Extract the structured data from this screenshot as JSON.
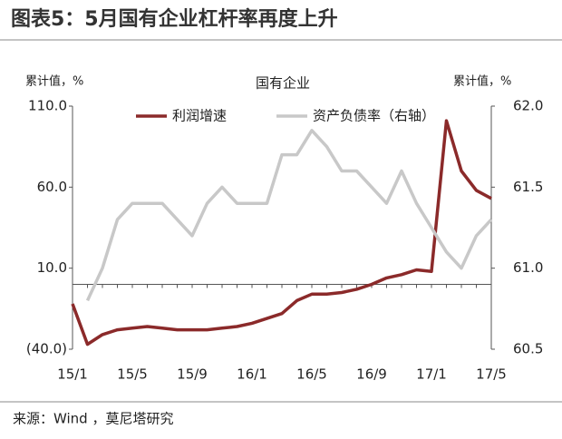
{
  "chart_data": {
    "type": "line",
    "title": "图表5：5月国有企业杠杆率再度上升",
    "subtitle": "国有企业",
    "y_label": "累计值，%",
    "y2_label": "累计值，%",
    "source": "来源：Wind ，莫尼塔研究",
    "categories": [
      "15/1",
      null,
      null,
      null,
      "15/5",
      null,
      null,
      null,
      "15/9",
      null,
      null,
      null,
      "16/1",
      null,
      null,
      null,
      "16/5",
      null,
      null,
      null,
      "16/9",
      null,
      null,
      null,
      "17/1",
      null,
      null,
      null,
      "17/5"
    ],
    "series": [
      {
        "name": "利润增速",
        "color": "#8b2a2a",
        "values": [
          -12,
          -37,
          -31,
          -28,
          -27,
          -26,
          -27,
          -28,
          -28,
          -28,
          -27,
          -26,
          -24,
          -21,
          -18,
          -10,
          -6,
          -6,
          -5,
          -3,
          0,
          4,
          6,
          9,
          8,
          101,
          70,
          58,
          53
        ]
      },
      {
        "name": "资产负债率（右轴）",
        "color": "#c8c8c8",
        "axis": "y2",
        "values": [
          null,
          60.8,
          61.0,
          61.3,
          61.4,
          61.4,
          61.4,
          61.3,
          61.2,
          61.4,
          61.5,
          61.4,
          61.4,
          61.4,
          61.7,
          61.7,
          61.85,
          61.75,
          61.6,
          61.6,
          61.5,
          61.4,
          61.6,
          61.4,
          61.25,
          61.1,
          61.0,
          61.2,
          61.3
        ]
      }
    ],
    "ylim": [
      -40,
      110
    ],
    "yticks": [
      {
        "value": 110,
        "label": "110.0"
      },
      {
        "value": 60,
        "label": "60.0"
      },
      {
        "value": 10,
        "label": "10.0"
      },
      {
        "value": -40,
        "label": "(40.0)"
      }
    ],
    "negative_tick_color": "#c00000",
    "y2lim": [
      60.5,
      62.0
    ],
    "y2ticks": [
      {
        "value": 62,
        "label": "62.0"
      },
      {
        "value": 61.5,
        "label": "61.5"
      },
      {
        "value": 61,
        "label": "61.0"
      },
      {
        "value": 60.5,
        "label": "60.5"
      }
    ],
    "grid": false
  }
}
